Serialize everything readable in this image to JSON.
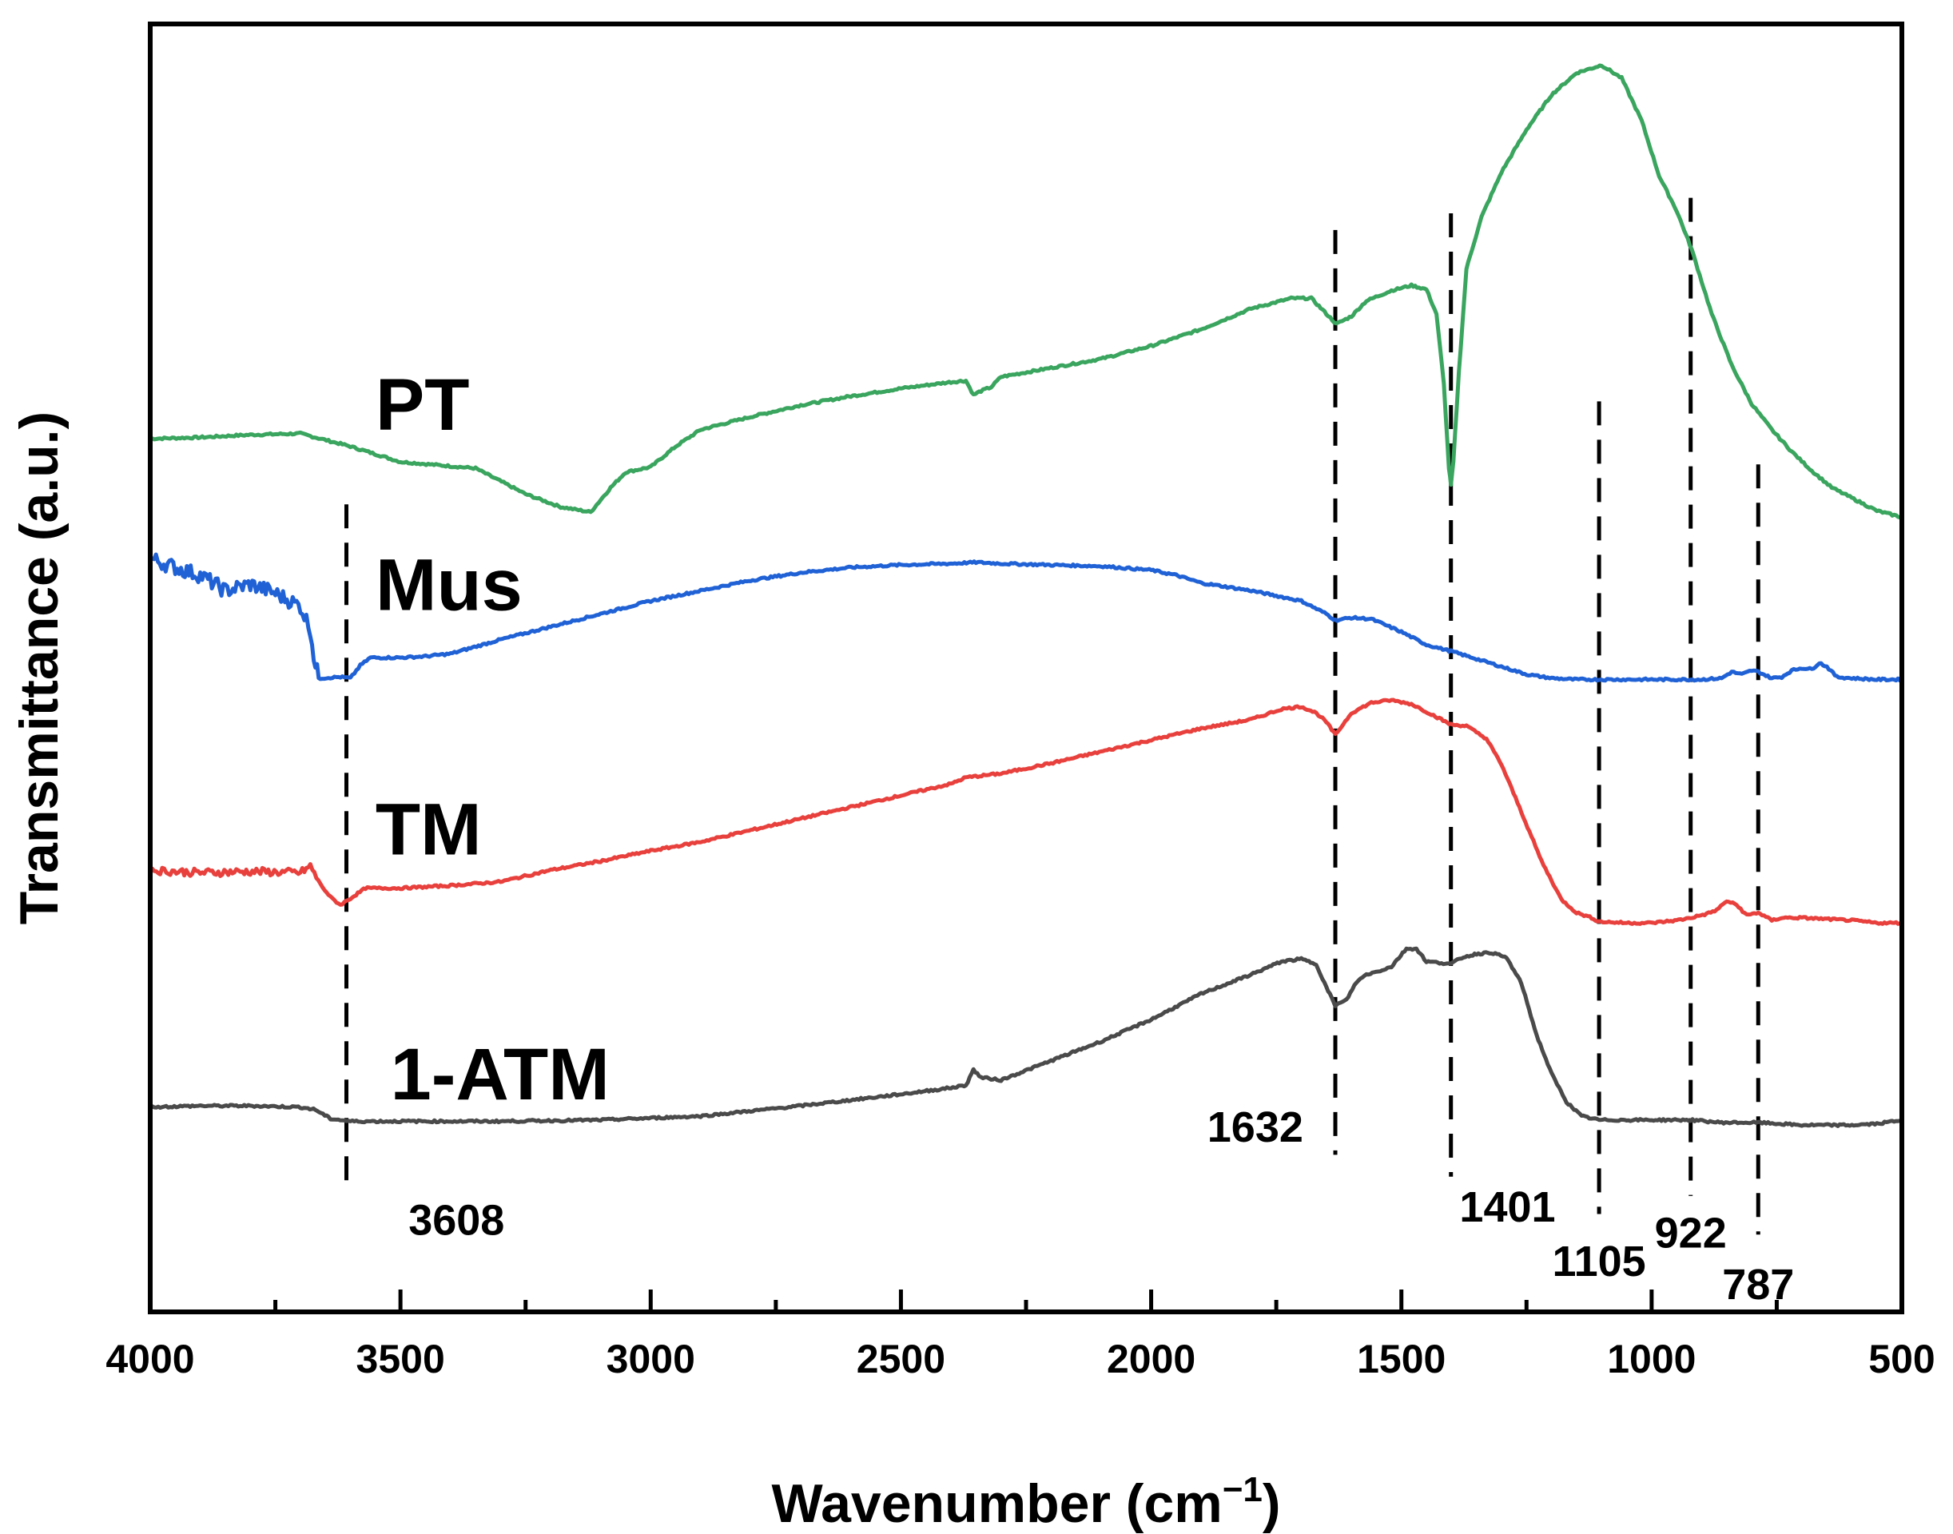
{
  "chart_data": {
    "type": "line",
    "title": "",
    "xlabel_main": "Wavenumber (cm",
    "xlabel_sup": "−1",
    "xlabel_close": ")",
    "ylabel": "Transmittance (a.u.)",
    "xlim": [
      4000,
      500
    ],
    "ylim": [
      0,
      1
    ],
    "x_ticks": [
      4000,
      3500,
      3000,
      2500,
      2000,
      1500,
      1000,
      500
    ],
    "x_tick_labels": [
      "4000",
      "3500",
      "3000",
      "2500",
      "2000",
      "1500",
      "1000",
      "500"
    ],
    "y_ticks_shown": false,
    "series": [
      {
        "name": "PT",
        "color": "#3aa55e",
        "points": [
          [
            4000,
            0.678
          ],
          [
            3900,
            0.679
          ],
          [
            3800,
            0.681
          ],
          [
            3700,
            0.682
          ],
          [
            3600,
            0.672
          ],
          [
            3500,
            0.66
          ],
          [
            3350,
            0.655
          ],
          [
            3250,
            0.635
          ],
          [
            3180,
            0.625
          ],
          [
            3120,
            0.621
          ],
          [
            3080,
            0.64
          ],
          [
            3050,
            0.652
          ],
          [
            3000,
            0.656
          ],
          [
            2950,
            0.672
          ],
          [
            2900,
            0.685
          ],
          [
            2800,
            0.695
          ],
          [
            2700,
            0.704
          ],
          [
            2600,
            0.711
          ],
          [
            2500,
            0.717
          ],
          [
            2400,
            0.722
          ],
          [
            2370,
            0.723
          ],
          [
            2355,
            0.712
          ],
          [
            2340,
            0.715
          ],
          [
            2320,
            0.718
          ],
          [
            2300,
            0.726
          ],
          [
            2200,
            0.733
          ],
          [
            2100,
            0.74
          ],
          [
            2000,
            0.75
          ],
          [
            1900,
            0.763
          ],
          [
            1800,
            0.779
          ],
          [
            1720,
            0.787
          ],
          [
            1680,
            0.787
          ],
          [
            1650,
            0.775
          ],
          [
            1630,
            0.767
          ],
          [
            1600,
            0.773
          ],
          [
            1570,
            0.785
          ],
          [
            1520,
            0.793
          ],
          [
            1480,
            0.797
          ],
          [
            1450,
            0.794
          ],
          [
            1430,
            0.775
          ],
          [
            1415,
            0.72
          ],
          [
            1405,
            0.655
          ],
          [
            1401,
            0.642
          ],
          [
            1396,
            0.66
          ],
          [
            1385,
            0.73
          ],
          [
            1370,
            0.81
          ],
          [
            1340,
            0.85
          ],
          [
            1300,
            0.885
          ],
          [
            1250,
            0.918
          ],
          [
            1200,
            0.945
          ],
          [
            1150,
            0.962
          ],
          [
            1100,
            0.968
          ],
          [
            1060,
            0.958
          ],
          [
            1020,
            0.925
          ],
          [
            985,
            0.882
          ],
          [
            950,
            0.855
          ],
          [
            920,
            0.825
          ],
          [
            880,
            0.775
          ],
          [
            840,
            0.735
          ],
          [
            800,
            0.705
          ],
          [
            760,
            0.685
          ],
          [
            720,
            0.668
          ],
          [
            680,
            0.653
          ],
          [
            640,
            0.64
          ],
          [
            600,
            0.632
          ],
          [
            550,
            0.622
          ],
          [
            500,
            0.617
          ]
        ]
      },
      {
        "name": "Mus",
        "color": "#2062d6",
        "points": [
          [
            4000,
            0.585
          ],
          [
            3950,
            0.578
          ],
          [
            3900,
            0.572
          ],
          [
            3850,
            0.56
          ],
          [
            3800,
            0.565
          ],
          [
            3750,
            0.558
          ],
          [
            3700,
            0.548
          ],
          [
            3680,
            0.53
          ],
          [
            3670,
            0.5
          ],
          [
            3660,
            0.492
          ],
          [
            3620,
            0.493
          ],
          [
            3600,
            0.492
          ],
          [
            3580,
            0.502
          ],
          [
            3560,
            0.508
          ],
          [
            3500,
            0.508
          ],
          [
            3450,
            0.509
          ],
          [
            3400,
            0.511
          ],
          [
            3300,
            0.522
          ],
          [
            3200,
            0.532
          ],
          [
            3100,
            0.542
          ],
          [
            3000,
            0.552
          ],
          [
            2900,
            0.56
          ],
          [
            2800,
            0.568
          ],
          [
            2700,
            0.574
          ],
          [
            2600,
            0.578
          ],
          [
            2500,
            0.58
          ],
          [
            2400,
            0.581
          ],
          [
            2350,
            0.582
          ],
          [
            2300,
            0.581
          ],
          [
            2200,
            0.58
          ],
          [
            2100,
            0.579
          ],
          [
            2000,
            0.576
          ],
          [
            1950,
            0.572
          ],
          [
            1900,
            0.566
          ],
          [
            1800,
            0.56
          ],
          [
            1750,
            0.556
          ],
          [
            1700,
            0.552
          ],
          [
            1650,
            0.542
          ],
          [
            1632,
            0.537
          ],
          [
            1600,
            0.539
          ],
          [
            1560,
            0.538
          ],
          [
            1500,
            0.528
          ],
          [
            1450,
            0.518
          ],
          [
            1401,
            0.513
          ],
          [
            1350,
            0.507
          ],
          [
            1300,
            0.501
          ],
          [
            1250,
            0.495
          ],
          [
            1200,
            0.492
          ],
          [
            1150,
            0.491
          ],
          [
            1105,
            0.491
          ],
          [
            1000,
            0.491
          ],
          [
            922,
            0.491
          ],
          [
            900,
            0.491
          ],
          [
            860,
            0.492
          ],
          [
            840,
            0.497
          ],
          [
            820,
            0.495
          ],
          [
            800,
            0.498
          ],
          [
            787,
            0.497
          ],
          [
            760,
            0.492
          ],
          [
            740,
            0.493
          ],
          [
            720,
            0.498
          ],
          [
            700,
            0.5
          ],
          [
            680,
            0.499
          ],
          [
            665,
            0.504
          ],
          [
            650,
            0.501
          ],
          [
            630,
            0.493
          ],
          [
            600,
            0.492
          ],
          [
            550,
            0.491
          ],
          [
            500,
            0.491
          ]
        ]
      },
      {
        "name": "TM",
        "color": "#e8413d",
        "points": [
          [
            4000,
            0.343
          ],
          [
            3900,
            0.341
          ],
          [
            3800,
            0.342
          ],
          [
            3700,
            0.341
          ],
          [
            3680,
            0.346
          ],
          [
            3660,
            0.332
          ],
          [
            3640,
            0.322
          ],
          [
            3620,
            0.316
          ],
          [
            3600,
            0.321
          ],
          [
            3570,
            0.329
          ],
          [
            3500,
            0.329
          ],
          [
            3400,
            0.331
          ],
          [
            3300,
            0.334
          ],
          [
            3200,
            0.343
          ],
          [
            3100,
            0.35
          ],
          [
            3000,
            0.358
          ],
          [
            2900,
            0.365
          ],
          [
            2800,
            0.374
          ],
          [
            2700,
            0.383
          ],
          [
            2600,
            0.392
          ],
          [
            2500,
            0.401
          ],
          [
            2400,
            0.41
          ],
          [
            2370,
            0.415
          ],
          [
            2300,
            0.418
          ],
          [
            2200,
            0.426
          ],
          [
            2100,
            0.435
          ],
          [
            2000,
            0.444
          ],
          [
            1900,
            0.453
          ],
          [
            1800,
            0.46
          ],
          [
            1740,
            0.468
          ],
          [
            1700,
            0.47
          ],
          [
            1670,
            0.465
          ],
          [
            1650,
            0.458
          ],
          [
            1632,
            0.448
          ],
          [
            1600,
            0.465
          ],
          [
            1560,
            0.473
          ],
          [
            1520,
            0.475
          ],
          [
            1480,
            0.472
          ],
          [
            1440,
            0.464
          ],
          [
            1401,
            0.456
          ],
          [
            1370,
            0.455
          ],
          [
            1330,
            0.445
          ],
          [
            1300,
            0.425
          ],
          [
            1260,
            0.388
          ],
          [
            1220,
            0.35
          ],
          [
            1180,
            0.32
          ],
          [
            1150,
            0.31
          ],
          [
            1120,
            0.306
          ],
          [
            1105,
            0.303
          ],
          [
            1050,
            0.302
          ],
          [
            1000,
            0.302
          ],
          [
            950,
            0.304
          ],
          [
            922,
            0.306
          ],
          [
            890,
            0.309
          ],
          [
            870,
            0.312
          ],
          [
            850,
            0.319
          ],
          [
            830,
            0.316
          ],
          [
            810,
            0.308
          ],
          [
            787,
            0.31
          ],
          [
            760,
            0.304
          ],
          [
            740,
            0.306
          ],
          [
            700,
            0.306
          ],
          [
            650,
            0.305
          ],
          [
            600,
            0.304
          ],
          [
            550,
            0.302
          ],
          [
            500,
            0.302
          ]
        ]
      },
      {
        "name": "1-ATM",
        "color": "#4a4a4a",
        "points": [
          [
            4000,
            0.159
          ],
          [
            3900,
            0.16
          ],
          [
            3800,
            0.16
          ],
          [
            3700,
            0.159
          ],
          [
            3670,
            0.157
          ],
          [
            3640,
            0.15
          ],
          [
            3600,
            0.148
          ],
          [
            3500,
            0.148
          ],
          [
            3300,
            0.148
          ],
          [
            3100,
            0.149
          ],
          [
            2900,
            0.152
          ],
          [
            2700,
            0.16
          ],
          [
            2500,
            0.169
          ],
          [
            2400,
            0.174
          ],
          [
            2370,
            0.176
          ],
          [
            2355,
            0.188
          ],
          [
            2340,
            0.182
          ],
          [
            2300,
            0.18
          ],
          [
            2200,
            0.195
          ],
          [
            2100,
            0.21
          ],
          [
            2000,
            0.227
          ],
          [
            1900,
            0.247
          ],
          [
            1800,
            0.262
          ],
          [
            1740,
            0.272
          ],
          [
            1700,
            0.274
          ],
          [
            1670,
            0.27
          ],
          [
            1650,
            0.252
          ],
          [
            1632,
            0.238
          ],
          [
            1610,
            0.242
          ],
          [
            1590,
            0.256
          ],
          [
            1570,
            0.262
          ],
          [
            1550,
            0.264
          ],
          [
            1520,
            0.268
          ],
          [
            1490,
            0.282
          ],
          [
            1470,
            0.282
          ],
          [
            1450,
            0.272
          ],
          [
            1420,
            0.271
          ],
          [
            1401,
            0.27
          ],
          [
            1380,
            0.275
          ],
          [
            1350,
            0.278
          ],
          [
            1320,
            0.279
          ],
          [
            1290,
            0.275
          ],
          [
            1260,
            0.255
          ],
          [
            1230,
            0.215
          ],
          [
            1200,
            0.185
          ],
          [
            1170,
            0.163
          ],
          [
            1140,
            0.152
          ],
          [
            1105,
            0.149
          ],
          [
            1050,
            0.149
          ],
          [
            1000,
            0.149
          ],
          [
            922,
            0.149
          ],
          [
            860,
            0.147
          ],
          [
            800,
            0.147
          ],
          [
            787,
            0.147
          ],
          [
            700,
            0.145
          ],
          [
            600,
            0.145
          ],
          [
            550,
            0.146
          ],
          [
            500,
            0.149
          ]
        ]
      }
    ],
    "series_labels": [
      {
        "text": "PT",
        "x": 3550,
        "y": 0.685
      },
      {
        "text": "Mus",
        "x": 3550,
        "y": 0.545
      },
      {
        "text": "TM",
        "x": 3550,
        "y": 0.355
      },
      {
        "text": "1-ATM",
        "x": 3520,
        "y": 0.165
      }
    ],
    "reference_lines": [
      {
        "x": 3608,
        "y_top": 0.627,
        "y_bottom": 0.097,
        "label": "3608",
        "label_x": 3388,
        "label_y": 0.06
      },
      {
        "x": 1632,
        "y_top": 0.84,
        "y_bottom": 0.122,
        "label": "1632",
        "label_x": 1792,
        "label_y": 0.132
      },
      {
        "x": 1401,
        "y_top": 0.853,
        "y_bottom": 0.105,
        "label": "1401",
        "label_x": 1288,
        "label_y": 0.07
      },
      {
        "x": 1105,
        "y_top": 0.707,
        "y_bottom": 0.076,
        "label": "1105",
        "label_x": 1105,
        "label_y": 0.028
      },
      {
        "x": 922,
        "y_top": 0.865,
        "y_bottom": 0.09,
        "label": "922",
        "label_x": 922,
        "label_y": 0.05
      },
      {
        "x": 787,
        "y_top": 0.658,
        "y_bottom": 0.06,
        "label": "787",
        "label_x": 787,
        "label_y": 0.01
      }
    ]
  }
}
